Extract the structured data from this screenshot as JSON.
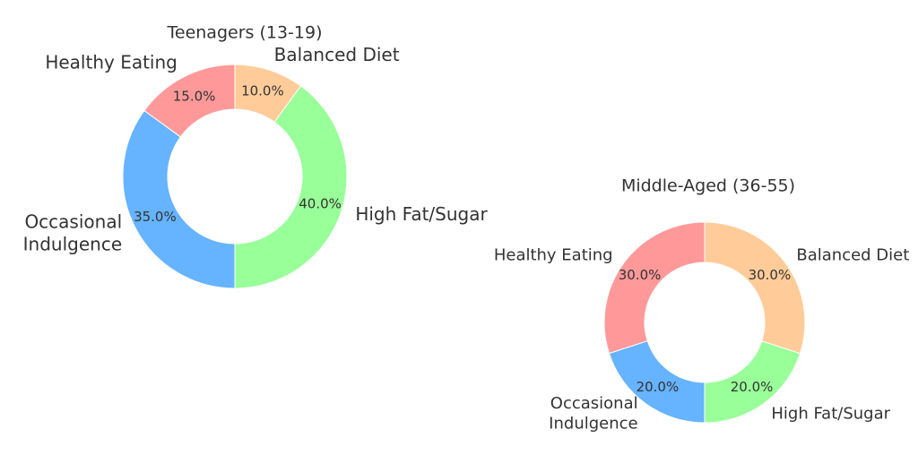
{
  "chart_data": [
    {
      "type": "pie",
      "title": "Teenagers (13-19)",
      "categories": [
        "Healthy Eating",
        "Occasional\nIndulgence",
        "High Fat/Sugar",
        "Balanced Diet"
      ],
      "values": [
        15,
        35,
        40,
        10
      ],
      "value_labels": [
        "15.0%",
        "35.0%",
        "40.0%",
        "10.0%"
      ],
      "colors": [
        "#ff9999",
        "#66b3ff",
        "#99ff99",
        "#ffcc99"
      ]
    },
    {
      "type": "pie",
      "title": "Middle-Aged (36-55)",
      "categories": [
        "Healthy Eating",
        "Occasional\nIndulgence",
        "High Fat/Sugar",
        "Balanced Diet"
      ],
      "values": [
        30,
        20,
        20,
        30
      ],
      "value_labels": [
        "30.0%",
        "20.0%",
        "20.0%",
        "30.0%"
      ],
      "colors": [
        "#ff9999",
        "#66b3ff",
        "#99ff99",
        "#ffcc99"
      ]
    }
  ]
}
